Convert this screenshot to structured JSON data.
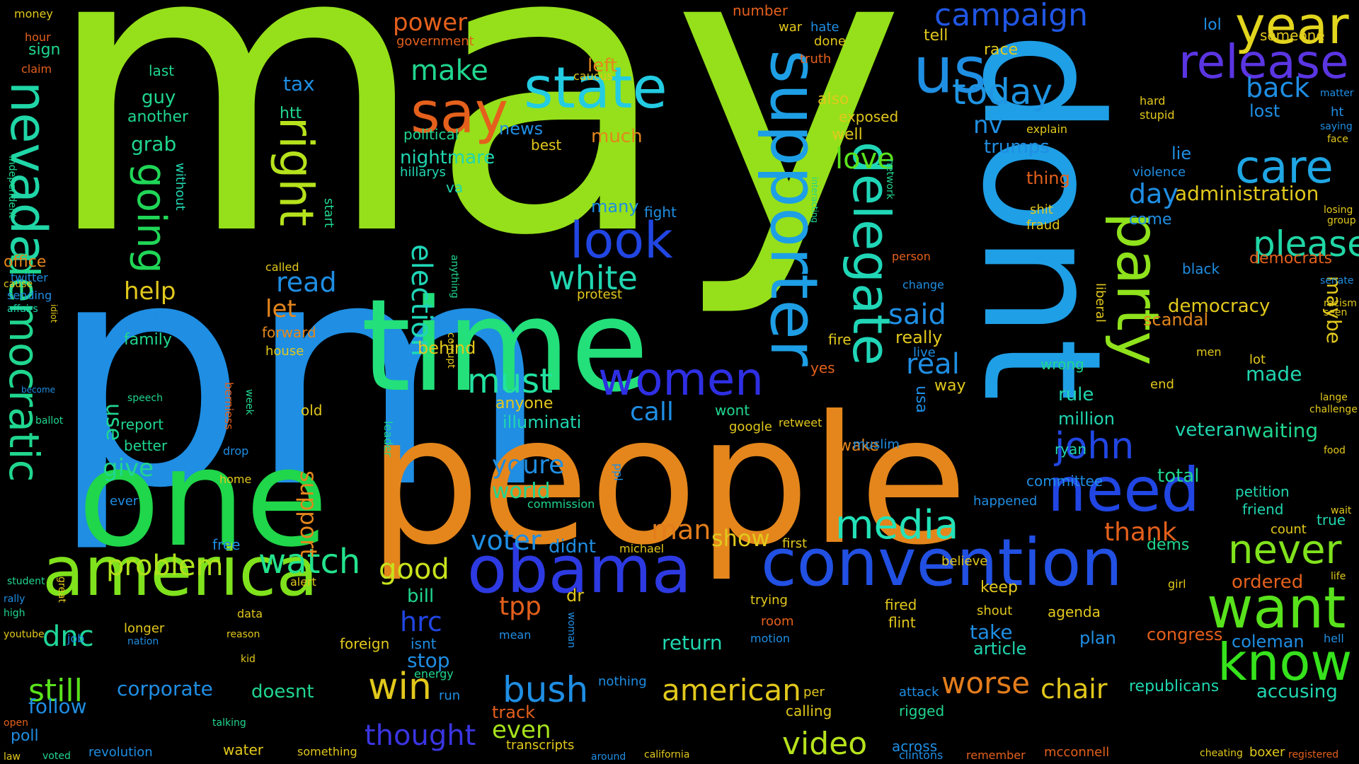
{
  "words": [
    {
      "text": "may",
      "color": "#95e01a"
    },
    {
      "text": "pm",
      "color": "#1f8ee3"
    },
    {
      "text": "people",
      "color": "#e4861c"
    },
    {
      "text": "dont",
      "color": "#1f9fe6"
    },
    {
      "text": "time",
      "color": "#23e07a"
    },
    {
      "text": "one",
      "color": "#20d64a"
    },
    {
      "text": "supporter",
      "color": "#1e9fe5"
    },
    {
      "text": "america",
      "color": "#7fe21c"
    },
    {
      "text": "convention",
      "color": "#2150e3"
    },
    {
      "text": "obama",
      "color": "#2d3ae2"
    },
    {
      "text": "say",
      "color": "#e4601c"
    },
    {
      "text": "state",
      "color": "#23cce2"
    },
    {
      "text": "us",
      "color": "#1f8fe3"
    },
    {
      "text": "year",
      "color": "#e2d51e"
    },
    {
      "text": "release",
      "color": "#5a35e2"
    },
    {
      "text": "nevada",
      "color": "#20d6a7"
    },
    {
      "text": "democratic",
      "color": "#20d68f"
    },
    {
      "text": "look",
      "color": "#2146e3"
    },
    {
      "text": "women",
      "color": "#2e2fe3"
    },
    {
      "text": "delegate",
      "color": "#20d6b7"
    },
    {
      "text": "party",
      "color": "#8fe21c"
    },
    {
      "text": "need",
      "color": "#2146e3"
    },
    {
      "text": "want",
      "color": "#58e21c"
    },
    {
      "text": "know",
      "color": "#36e21c"
    },
    {
      "text": "care",
      "color": "#1fa6e3"
    },
    {
      "text": "campaign",
      "color": "#2156e3"
    },
    {
      "text": "today",
      "color": "#1f95e3"
    },
    {
      "text": "right",
      "color": "#b6e21c"
    },
    {
      "text": "going",
      "color": "#20d657"
    },
    {
      "text": "media",
      "color": "#23e2b8"
    },
    {
      "text": "john",
      "color": "#2146e3"
    },
    {
      "text": "never",
      "color": "#80e21c"
    },
    {
      "text": "please",
      "color": "#20d6a5"
    },
    {
      "text": "white",
      "color": "#20d6b0"
    },
    {
      "text": "watch",
      "color": "#23e28d"
    },
    {
      "text": "win",
      "color": "#e2c81c"
    },
    {
      "text": "bush",
      "color": "#1f8ee3"
    },
    {
      "text": "still",
      "color": "#5ae21c"
    },
    {
      "text": "american",
      "color": "#e2c81c"
    },
    {
      "text": "video",
      "color": "#b6e21c"
    },
    {
      "text": "must",
      "color": "#23e2a0"
    },
    {
      "text": "make",
      "color": "#20d68f"
    },
    {
      "text": "good",
      "color": "#c8e21c"
    },
    {
      "text": "problem",
      "color": "#b0e21c"
    },
    {
      "text": "worse",
      "color": "#e47d1c"
    },
    {
      "text": "thought",
      "color": "#3a35e2"
    },
    {
      "text": "dnc",
      "color": "#20d69a"
    },
    {
      "text": "tpp",
      "color": "#e4601c"
    },
    {
      "text": "hrc",
      "color": "#2146e3"
    },
    {
      "text": "man",
      "color": "#e47d1c"
    },
    {
      "text": "voter",
      "color": "#1f8ee3"
    },
    {
      "text": "youre",
      "color": "#1f8ee3"
    },
    {
      "text": "even",
      "color": "#a6e21c"
    },
    {
      "text": "chair",
      "color": "#e2c81c"
    },
    {
      "text": "thank",
      "color": "#e4601c"
    },
    {
      "text": "election",
      "color": "#20d6b7"
    },
    {
      "text": "love",
      "color": "#5ae21c"
    },
    {
      "text": "read",
      "color": "#1f8ee3"
    },
    {
      "text": "said",
      "color": "#1f8ee3"
    },
    {
      "text": "real",
      "color": "#1f8ee3"
    },
    {
      "text": "back",
      "color": "#1f8ee3"
    },
    {
      "text": "day",
      "color": "#1f8ee3"
    },
    {
      "text": "call",
      "color": "#1f8ee3"
    },
    {
      "text": "give",
      "color": "#20d68f"
    },
    {
      "text": "use",
      "color": "#20d68f"
    },
    {
      "text": "support",
      "color": "#e4861c"
    },
    {
      "text": "let",
      "color": "#e4861c"
    },
    {
      "text": "help",
      "color": "#e2c81c"
    },
    {
      "text": "maybe",
      "color": "#e2c81c"
    },
    {
      "text": "show",
      "color": "#e2c81c"
    },
    {
      "text": "world",
      "color": "#20d68f"
    },
    {
      "text": "power",
      "color": "#e4601c"
    },
    {
      "text": "corporate",
      "color": "#1f8ee3"
    },
    {
      "text": "follow",
      "color": "#1f8ee3"
    },
    {
      "text": "stop",
      "color": "#1f8ee3"
    },
    {
      "text": "return",
      "color": "#20d6b0"
    },
    {
      "text": "take",
      "color": "#1f8ee3"
    },
    {
      "text": "article",
      "color": "#20d6b0"
    },
    {
      "text": "congress",
      "color": "#e4601c"
    },
    {
      "text": "coleman",
      "color": "#1f8ee3"
    },
    {
      "text": "veteran",
      "color": "#20d6b0"
    },
    {
      "text": "waiting",
      "color": "#20d68f"
    },
    {
      "text": "accusing",
      "color": "#20d6b0"
    },
    {
      "text": "republicans",
      "color": "#20d6b0"
    },
    {
      "text": "million",
      "color": "#20d6b0"
    },
    {
      "text": "total",
      "color": "#20d68f"
    },
    {
      "text": "rule",
      "color": "#20d6b0"
    },
    {
      "text": "democracy",
      "color": "#e2c81c"
    },
    {
      "text": "administration",
      "color": "#e2c81c"
    },
    {
      "text": "democrats",
      "color": "#e4601c"
    },
    {
      "text": "scandal",
      "color": "#e4861c"
    },
    {
      "text": "ordered",
      "color": "#e4601c"
    },
    {
      "text": "made",
      "color": "#20d6b0"
    },
    {
      "text": "nightmare",
      "color": "#20d6b0"
    },
    {
      "text": "illuminati",
      "color": "#20d6b0"
    },
    {
      "text": "behind",
      "color": "#e2c81c"
    },
    {
      "text": "much",
      "color": "#e4861c"
    },
    {
      "text": "many",
      "color": "#1f8ee3"
    },
    {
      "text": "left",
      "color": "#e4861c"
    },
    {
      "text": "news",
      "color": "#1f8ee3"
    },
    {
      "text": "trumps",
      "color": "#1f8ee3"
    },
    {
      "text": "nv",
      "color": "#1f8ee3"
    },
    {
      "text": "tell",
      "color": "#e2c81c"
    },
    {
      "text": "race",
      "color": "#e2c81c"
    },
    {
      "text": "thing",
      "color": "#e4601c"
    },
    {
      "text": "lie",
      "color": "#1f8ee3"
    },
    {
      "text": "come",
      "color": "#1f8ee3"
    },
    {
      "text": "lost",
      "color": "#1f8ee3"
    },
    {
      "text": "someone",
      "color": "#e2c81c"
    },
    {
      "text": "lol",
      "color": "#1f8ee3"
    },
    {
      "text": "tax",
      "color": "#1f8ee3"
    },
    {
      "text": "grab",
      "color": "#20d68f"
    },
    {
      "text": "guy",
      "color": "#20d68f"
    },
    {
      "text": "another",
      "color": "#20d68f"
    },
    {
      "text": "last",
      "color": "#20d68f"
    },
    {
      "text": "htt",
      "color": "#20d68f"
    },
    {
      "text": "sign",
      "color": "#20d68f"
    },
    {
      "text": "office",
      "color": "#e4861c"
    },
    {
      "text": "family",
      "color": "#20d68f"
    },
    {
      "text": "getting",
      "color": "#1f8ee3"
    },
    {
      "text": "forward",
      "color": "#e4861c"
    },
    {
      "text": "better",
      "color": "#20d68f"
    },
    {
      "text": "report",
      "color": "#20d68f"
    },
    {
      "text": "anyone",
      "color": "#e2c81c"
    },
    {
      "text": "free",
      "color": "#1f8ee3"
    },
    {
      "text": "ever",
      "color": "#1f8ee3"
    },
    {
      "text": "doesnt",
      "color": "#20d68f"
    },
    {
      "text": "bill",
      "color": "#20d68f"
    },
    {
      "text": "isnt",
      "color": "#1f8ee3"
    },
    {
      "text": "didnt",
      "color": "#1f8ee3"
    },
    {
      "text": "keep",
      "color": "#e2c81c"
    },
    {
      "text": "fired",
      "color": "#e2c81c"
    },
    {
      "text": "flint",
      "color": "#e2c81c"
    },
    {
      "text": "plan",
      "color": "#1f8ee3"
    },
    {
      "text": "agenda",
      "color": "#e2c81c"
    },
    {
      "text": "wrong",
      "color": "#20d68f"
    },
    {
      "text": "dems",
      "color": "#20d68f"
    },
    {
      "text": "petition",
      "color": "#20d6b0"
    },
    {
      "text": "friend",
      "color": "#20d6b0"
    },
    {
      "text": "true",
      "color": "#20d6b0"
    },
    {
      "text": "ryan",
      "color": "#20d6b0"
    },
    {
      "text": "committee",
      "color": "#1f8ee3"
    },
    {
      "text": "happened",
      "color": "#1f8ee3"
    },
    {
      "text": "mcconnell",
      "color": "#e4601c"
    },
    {
      "text": "remember",
      "color": "#e4601c"
    },
    {
      "text": "cheating",
      "color": "#e2c81c"
    },
    {
      "text": "boxer",
      "color": "#e2c81c"
    },
    {
      "text": "registered",
      "color": "#e4601c"
    },
    {
      "text": "revolution",
      "color": "#1f8ee3"
    },
    {
      "text": "poll",
      "color": "#1f8ee3"
    },
    {
      "text": "water",
      "color": "#e2c81c"
    },
    {
      "text": "something",
      "color": "#e2c81c"
    },
    {
      "text": "transcripts",
      "color": "#e2c81c"
    },
    {
      "text": "around",
      "color": "#1f8ee3"
    },
    {
      "text": "california",
      "color": "#e2c81c"
    },
    {
      "text": "across",
      "color": "#1f8ee3"
    },
    {
      "text": "clintons",
      "color": "#1f8ee3"
    },
    {
      "text": "calling",
      "color": "#e2c81c"
    },
    {
      "text": "track",
      "color": "#e4601c"
    },
    {
      "text": "rigged",
      "color": "#20d68f"
    },
    {
      "text": "attack",
      "color": "#1f8ee3"
    },
    {
      "text": "wake",
      "color": "#e4861c"
    },
    {
      "text": "first",
      "color": "#e2c81c"
    },
    {
      "text": "foreign",
      "color": "#e2c81c"
    },
    {
      "text": "longer",
      "color": "#e2c81c"
    },
    {
      "text": "dr",
      "color": "#e2c81c"
    },
    {
      "text": "really",
      "color": "#e2c81c"
    },
    {
      "text": "live",
      "color": "#1f8ee3"
    },
    {
      "text": "way",
      "color": "#e2c81c"
    },
    {
      "text": "usa",
      "color": "#1f8ee3"
    },
    {
      "text": "also",
      "color": "#e2c81c"
    },
    {
      "text": "well",
      "color": "#e2c81c"
    },
    {
      "text": "exposed",
      "color": "#e2c81c"
    },
    {
      "text": "done",
      "color": "#e2c81c"
    },
    {
      "text": "war",
      "color": "#e2c81c"
    },
    {
      "text": "hate",
      "color": "#1f8ee3"
    },
    {
      "text": "number",
      "color": "#e4601c"
    },
    {
      "text": "truth",
      "color": "#e4601c"
    },
    {
      "text": "fight",
      "color": "#1f8ee3"
    },
    {
      "text": "political",
      "color": "#20d68f"
    },
    {
      "text": "best",
      "color": "#e2c81c"
    },
    {
      "text": "hillarys",
      "color": "#20d6b0"
    },
    {
      "text": "va",
      "color": "#20d6b0"
    },
    {
      "text": "government",
      "color": "#e4601c"
    },
    {
      "text": "caucus",
      "color": "#e2c81c"
    },
    {
      "text": "protest",
      "color": "#e2c81c"
    },
    {
      "text": "wont",
      "color": "#20d68f"
    },
    {
      "text": "google",
      "color": "#e2c81c"
    },
    {
      "text": "retweet",
      "color": "#e2c81c"
    },
    {
      "text": "nothing",
      "color": "#1f8ee3"
    },
    {
      "text": "money",
      "color": "#e2c81c"
    },
    {
      "text": "hour",
      "color": "#e4601c"
    },
    {
      "text": "claim",
      "color": "#e4601c"
    },
    {
      "text": "twitter",
      "color": "#1f8ee3"
    },
    {
      "text": "sending",
      "color": "#1f8ee3"
    },
    {
      "text": "affairs",
      "color": "#20d6b0"
    },
    {
      "text": "without",
      "color": "#20d6b0"
    },
    {
      "text": "house",
      "color": "#e2c81c"
    },
    {
      "text": "old",
      "color": "#e2c81c"
    },
    {
      "text": "start",
      "color": "#20d68f"
    },
    {
      "text": "woman",
      "color": "#1f8ee3"
    },
    {
      "text": "energy",
      "color": "#20d68f"
    },
    {
      "text": "run",
      "color": "#1f8ee3"
    },
    {
      "text": "mean",
      "color": "#1f8ee3"
    },
    {
      "text": "room",
      "color": "#e4601c"
    },
    {
      "text": "motion",
      "color": "#1f8ee3"
    },
    {
      "text": "trying",
      "color": "#e2c81c"
    },
    {
      "text": "per",
      "color": "#e2c81c"
    },
    {
      "text": "believe",
      "color": "#e2c81c"
    },
    {
      "text": "shout",
      "color": "#e2c81c"
    },
    {
      "text": "girl",
      "color": "#e2c81c"
    },
    {
      "text": "hell",
      "color": "#1f8ee3"
    },
    {
      "text": "black",
      "color": "#1f8ee3"
    },
    {
      "text": "fraud",
      "color": "#e2c81c"
    },
    {
      "text": "shit",
      "color": "#e2c81c"
    },
    {
      "text": "explain",
      "color": "#e2c81c"
    },
    {
      "text": "violence",
      "color": "#1f8ee3"
    },
    {
      "text": "stupid",
      "color": "#e2c81c"
    },
    {
      "text": "hard",
      "color": "#e2c81c"
    },
    {
      "text": "ht",
      "color": "#1f8ee3"
    },
    {
      "text": "count",
      "color": "#e2c81c"
    },
    {
      "text": "end",
      "color": "#e2c81c"
    },
    {
      "text": "men",
      "color": "#e2c81c"
    },
    {
      "text": "lot",
      "color": "#e2c81c"
    },
    {
      "text": "fire",
      "color": "#e2c81c"
    },
    {
      "text": "yes",
      "color": "#e4601c"
    },
    {
      "text": "change",
      "color": "#1f8ee3"
    },
    {
      "text": "person",
      "color": "#e4601c"
    },
    {
      "text": "network",
      "color": "#20d68f"
    },
    {
      "text": "interacting",
      "color": "#20d68f"
    },
    {
      "text": "liberal",
      "color": "#e2c81c"
    },
    {
      "text": "muslim",
      "color": "#1f8ee3"
    },
    {
      "text": "anything",
      "color": "#20d68f"
    },
    {
      "text": "corrupt",
      "color": "#e2c81c"
    },
    {
      "text": "commission",
      "color": "#20d68f"
    },
    {
      "text": "michael",
      "color": "#e2c81c"
    },
    {
      "text": "ppl",
      "color": "#1f8ee3"
    },
    {
      "text": "leader",
      "color": "#20d68f"
    },
    {
      "text": "speech",
      "color": "#20d68f"
    },
    {
      "text": "berniess",
      "color": "#e4601c"
    },
    {
      "text": "drop",
      "color": "#1f8ee3"
    },
    {
      "text": "week",
      "color": "#20d68f"
    },
    {
      "text": "home",
      "color": "#e2c81c"
    },
    {
      "text": "alert",
      "color": "#e2c81c"
    },
    {
      "text": "called",
      "color": "#e2c81c"
    },
    {
      "text": "data",
      "color": "#e2c81c"
    },
    {
      "text": "reason",
      "color": "#e2c81c"
    },
    {
      "text": "kid",
      "color": "#e2c81c"
    },
    {
      "text": "job",
      "color": "#1f8ee3"
    },
    {
      "text": "nation",
      "color": "#1f8ee3"
    },
    {
      "text": "talking",
      "color": "#20d68f"
    },
    {
      "text": "voted",
      "color": "#20d68f"
    },
    {
      "text": "high",
      "color": "#20d68f"
    },
    {
      "text": "youtube",
      "color": "#e2c81c"
    },
    {
      "text": "rally",
      "color": "#1f8ee3"
    },
    {
      "text": "student",
      "color": "#20d68f"
    },
    {
      "text": "great",
      "color": "#e2c81c"
    },
    {
      "text": "law",
      "color": "#e2c81c"
    },
    {
      "text": "open",
      "color": "#e4601c"
    },
    {
      "text": "ballot",
      "color": "#20d68f"
    },
    {
      "text": "independent",
      "color": "#20d68f"
    },
    {
      "text": "cause",
      "color": "#e2c81c"
    },
    {
      "text": "idiot",
      "color": "#e2c81c"
    },
    {
      "text": "become",
      "color": "#1f8ee3"
    },
    {
      "text": "senate",
      "color": "#1f8ee3"
    },
    {
      "text": "food",
      "color": "#e2c81c"
    },
    {
      "text": "wait",
      "color": "#e2c81c"
    },
    {
      "text": "challenge",
      "color": "#e2c81c"
    },
    {
      "text": "lange",
      "color": "#e2c81c"
    },
    {
      "text": "life",
      "color": "#e2c81c"
    },
    {
      "text": "matter",
      "color": "#1f8ee3"
    },
    {
      "text": "face",
      "color": "#e2c81c"
    },
    {
      "text": "group",
      "color": "#e2c81c"
    },
    {
      "text": "losing",
      "color": "#e2c81c"
    },
    {
      "text": "saying",
      "color": "#1f8ee3"
    },
    {
      "text": "racism",
      "color": "#e2c81c"
    },
    {
      "text": "seen",
      "color": "#e2c81c"
    }
  ],
  "layout_note_removed": true
}
